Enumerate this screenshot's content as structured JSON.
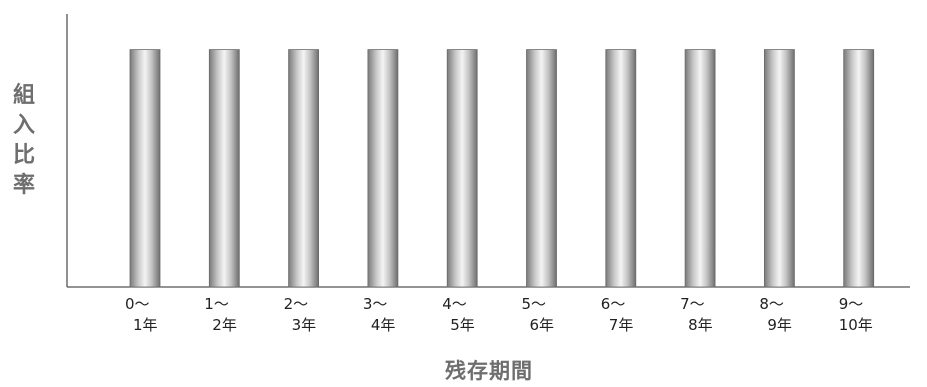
{
  "chart_data": {
    "type": "bar",
    "title": "",
    "xlabel": "残存期間",
    "ylabel": "組入比率",
    "categories": [
      {
        "line1": "0～",
        "line2": "1年"
      },
      {
        "line1": "1～",
        "line2": "2年"
      },
      {
        "line1": "2～",
        "line2": "3年"
      },
      {
        "line1": "3～",
        "line2": "4年"
      },
      {
        "line1": "4～",
        "line2": "5年"
      },
      {
        "line1": "5～",
        "line2": "6年"
      },
      {
        "line1": "6～",
        "line2": "7年"
      },
      {
        "line1": "7～",
        "line2": "8年"
      },
      {
        "line1": "8～",
        "line2": "9年"
      },
      {
        "line1": "9～",
        "line2": "10年"
      }
    ],
    "values": [
      10,
      10,
      10,
      10,
      10,
      10,
      10,
      10,
      10,
      10
    ],
    "ylim": [
      0,
      11.5
    ],
    "yticks_shown": false,
    "grid": false,
    "legend": "none",
    "bar_color": "#9a9a9a"
  }
}
